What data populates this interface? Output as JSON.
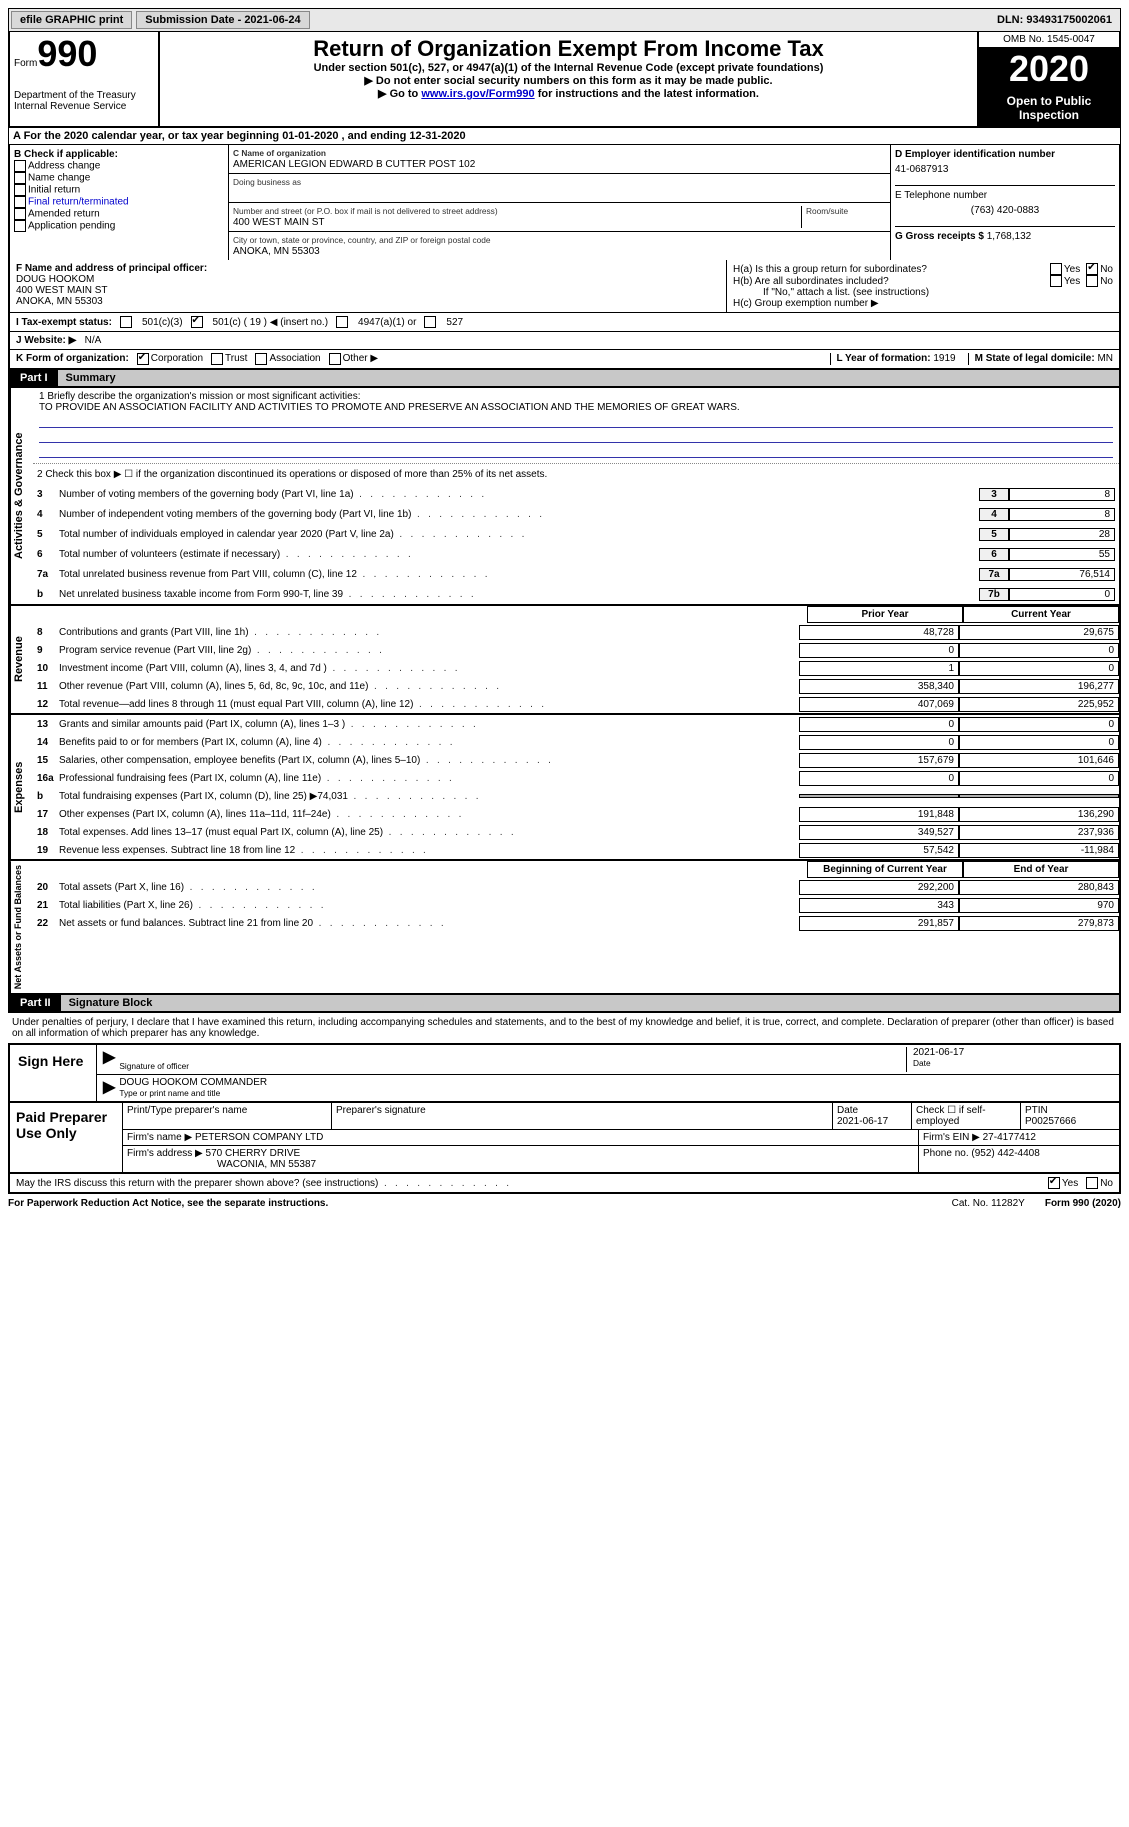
{
  "topbar": {
    "efile_label": "efile GRAPHIC print",
    "submission_label": "Submission Date - 2021-06-24",
    "dln_label": "DLN: 93493175002061"
  },
  "header": {
    "form_word": "Form",
    "form_num": "990",
    "dept": "Department of the Treasury\nInternal Revenue Service",
    "title": "Return of Organization Exempt From Income Tax",
    "sub1": "Under section 501(c), 527, or 4947(a)(1) of the Internal Revenue Code (except private foundations)",
    "sub2": "Do not enter social security numbers on this form as it may be made public.",
    "sub3_pre": "Go to ",
    "sub3_link": "www.irs.gov/Form990",
    "sub3_post": " for instructions and the latest information.",
    "omb": "OMB No. 1545-0047",
    "year": "2020",
    "open": "Open to Public Inspection"
  },
  "lineA": "A For the 2020 calendar year, or tax year beginning 01-01-2020   , and ending 12-31-2020",
  "boxB": {
    "title": "B Check if applicable:",
    "items": [
      "Address change",
      "Name change",
      "Initial return",
      "Final return/terminated",
      "Amended return",
      "Application pending"
    ]
  },
  "boxC": {
    "label_name": "C Name of organization",
    "name": "AMERICAN LEGION EDWARD B CUTTER POST 102",
    "dba_label": "Doing business as",
    "street_label": "Number and street (or P.O. box if mail is not delivered to street address)",
    "room_label": "Room/suite",
    "street": "400 WEST MAIN ST",
    "city_label": "City or town, state or province, country, and ZIP or foreign postal code",
    "city": "ANOKA, MN  55303"
  },
  "boxD": {
    "label": "D Employer identification number",
    "value": "41-0687913",
    "tel_label": "E Telephone number",
    "tel": "(763) 420-0883",
    "gross_label": "G Gross receipts $",
    "gross": "1,768,132"
  },
  "boxF": {
    "label": "F  Name and address of principal officer:",
    "name": "DOUG HOOKOM",
    "addr1": "400 WEST MAIN ST",
    "addr2": "ANOKA, MN  55303"
  },
  "boxH": {
    "ha": "H(a)  Is this a group return for subordinates?",
    "hb": "H(b)  Are all subordinates included?",
    "hb_note": "If \"No,\" attach a list. (see instructions)",
    "hc": "H(c)  Group exemption number ▶",
    "yes": "Yes",
    "no": "No"
  },
  "rowI": {
    "label": "I   Tax-exempt status:",
    "o1": "501(c)(3)",
    "o2": "501(c) ( 19 ) ◀ (insert no.)",
    "o3": "4947(a)(1) or",
    "o4": "527"
  },
  "rowJ": {
    "label": "J   Website: ▶",
    "value": "N/A"
  },
  "rowK": {
    "label": "K Form of organization:",
    "o1": "Corporation",
    "o2": "Trust",
    "o3": "Association",
    "o4": "Other ▶",
    "l_label": "L Year of formation:",
    "l_val": "1919",
    "m_label": "M State of legal domicile:",
    "m_val": "MN"
  },
  "part1": {
    "num": "Part I",
    "title": "Summary"
  },
  "mission": {
    "q": "1  Briefly describe the organization's mission or most significant activities:",
    "a": "TO PROVIDE AN ASSOCIATION FACILITY AND ACTIVITIES TO PROMOTE AND PRESERVE AN ASSOCIATION AND THE MEMORIES OF GREAT WARS."
  },
  "gov": {
    "side": "Activities & Governance",
    "l2": "2    Check this box ▶ ☐  if the organization discontinued its operations or disposed of more than 25% of its net assets.",
    "rows": [
      {
        "n": "3",
        "t": "Number of voting members of the governing body (Part VI, line 1a)",
        "c": "3",
        "v": "8"
      },
      {
        "n": "4",
        "t": "Number of independent voting members of the governing body (Part VI, line 1b)",
        "c": "4",
        "v": "8"
      },
      {
        "n": "5",
        "t": "Total number of individuals employed in calendar year 2020 (Part V, line 2a)",
        "c": "5",
        "v": "28"
      },
      {
        "n": "6",
        "t": "Total number of volunteers (estimate if necessary)",
        "c": "6",
        "v": "55"
      },
      {
        "n": "7a",
        "t": "Total unrelated business revenue from Part VIII, column (C), line 12",
        "c": "7a",
        "v": "76,514"
      },
      {
        "n": "b",
        "t": "Net unrelated business taxable income from Form 990-T, line 39",
        "c": "7b",
        "v": "0"
      }
    ]
  },
  "colhdr": {
    "py": "Prior Year",
    "cy": "Current Year"
  },
  "rev": {
    "side": "Revenue",
    "rows": [
      {
        "n": "8",
        "t": "Contributions and grants (Part VIII, line 1h)",
        "py": "48,728",
        "cy": "29,675"
      },
      {
        "n": "9",
        "t": "Program service revenue (Part VIII, line 2g)",
        "py": "0",
        "cy": "0"
      },
      {
        "n": "10",
        "t": "Investment income (Part VIII, column (A), lines 3, 4, and 7d )",
        "py": "1",
        "cy": "0"
      },
      {
        "n": "11",
        "t": "Other revenue (Part VIII, column (A), lines 5, 6d, 8c, 9c, 10c, and 11e)",
        "py": "358,340",
        "cy": "196,277"
      },
      {
        "n": "12",
        "t": "Total revenue—add lines 8 through 11 (must equal Part VIII, column (A), line 12)",
        "py": "407,069",
        "cy": "225,952"
      }
    ]
  },
  "exp": {
    "side": "Expenses",
    "rows": [
      {
        "n": "13",
        "t": "Grants and similar amounts paid (Part IX, column (A), lines 1–3 )",
        "py": "0",
        "cy": "0"
      },
      {
        "n": "14",
        "t": "Benefits paid to or for members (Part IX, column (A), line 4)",
        "py": "0",
        "cy": "0"
      },
      {
        "n": "15",
        "t": "Salaries, other compensation, employee benefits (Part IX, column (A), lines 5–10)",
        "py": "157,679",
        "cy": "101,646"
      },
      {
        "n": "16a",
        "t": "Professional fundraising fees (Part IX, column (A), line 11e)",
        "py": "0",
        "cy": "0"
      },
      {
        "n": "b",
        "t": "Total fundraising expenses (Part IX, column (D), line 25) ▶74,031",
        "py": "",
        "cy": "",
        "shade": true
      },
      {
        "n": "17",
        "t": "Other expenses (Part IX, column (A), lines 11a–11d, 11f–24e)",
        "py": "191,848",
        "cy": "136,290"
      },
      {
        "n": "18",
        "t": "Total expenses. Add lines 13–17 (must equal Part IX, column (A), line 25)",
        "py": "349,527",
        "cy": "237,936"
      },
      {
        "n": "19",
        "t": "Revenue less expenses. Subtract line 18 from line 12",
        "py": "57,542",
        "cy": "-11,984"
      }
    ]
  },
  "colhdr2": {
    "py": "Beginning of Current Year",
    "cy": "End of Year"
  },
  "net": {
    "side": "Net Assets or Fund Balances",
    "rows": [
      {
        "n": "20",
        "t": "Total assets (Part X, line 16)",
        "py": "292,200",
        "cy": "280,843"
      },
      {
        "n": "21",
        "t": "Total liabilities (Part X, line 26)",
        "py": "343",
        "cy": "970"
      },
      {
        "n": "22",
        "t": "Net assets or fund balances. Subtract line 21 from line 20",
        "py": "291,857",
        "cy": "279,873"
      }
    ]
  },
  "part2": {
    "num": "Part II",
    "title": "Signature Block"
  },
  "sig": {
    "decl": "Under penalties of perjury, I declare that I have examined this return, including accompanying schedules and statements, and to the best of my knowledge and belief, it is true, correct, and complete. Declaration of preparer (other than officer) is based on all information of which preparer has any knowledge.",
    "here": "Sign Here",
    "sig_label": "Signature of officer",
    "date": "2021-06-17",
    "date_label": "Date",
    "name": "DOUG HOOKOM  COMMANDER",
    "name_label": "Type or print name and title"
  },
  "prep": {
    "label": "Paid Preparer Use Only",
    "h1": "Print/Type preparer's name",
    "h2": "Preparer's signature",
    "h3": "Date",
    "h3v": "2021-06-17",
    "h4": "Check ☐ if self-employed",
    "h5": "PTIN",
    "h5v": "P00257666",
    "firm_label": "Firm's name   ▶",
    "firm": "PETERSON COMPANY LTD",
    "ein_label": "Firm's EIN ▶",
    "ein": "27-4177412",
    "addr_label": "Firm's address ▶",
    "addr1": "570 CHERRY DRIVE",
    "addr2": "WACONIA, MN  55387",
    "phone_label": "Phone no.",
    "phone": "(952) 442-4408"
  },
  "discuss": {
    "q": "May the IRS discuss this return with the preparer shown above? (see instructions)",
    "yes": "Yes",
    "no": "No"
  },
  "footer": {
    "left": "For Paperwork Reduction Act Notice, see the separate instructions.",
    "mid": "Cat. No. 11282Y",
    "right": "Form 990 (2020)"
  }
}
